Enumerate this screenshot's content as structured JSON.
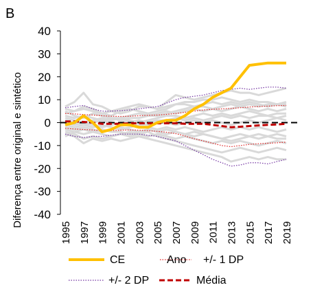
{
  "panel_label": "B",
  "chart_data": {
    "type": "line",
    "title": "",
    "xlabel": "",
    "ylabel": "Diferença entre original e sintético",
    "ylim": [
      -40,
      40
    ],
    "yticks": [
      -40,
      -30,
      -20,
      -10,
      0,
      10,
      20,
      30,
      40
    ],
    "x": [
      1995,
      1996,
      1997,
      1998,
      1999,
      2000,
      2001,
      2002,
      2003,
      2004,
      2005,
      2006,
      2007,
      2008,
      2009,
      2010,
      2011,
      2012,
      2013,
      2014,
      2015,
      2016,
      2017,
      2018,
      2019
    ],
    "xtick_labels": [
      "1995",
      "1997",
      "1999",
      "2001",
      "2003",
      "2005",
      "2007",
      "2009",
      "2011",
      "2013",
      "2015",
      "2017",
      "2019"
    ],
    "xtick_values": [
      1995,
      1997,
      1999,
      2001,
      2003,
      2005,
      2007,
      2009,
      2011,
      2013,
      2015,
      2017,
      2019
    ],
    "grid": false,
    "legend_position": "bottom",
    "legend": [
      "CE",
      "Ano",
      "+/- 1 DP",
      "+/- 2 DP",
      "Média"
    ],
    "colors": {
      "ce": "#FFC000",
      "placebo": "#D9D9D9",
      "sd1": "#E02020",
      "sd2": "#7030A0",
      "mean": "#C00000",
      "zero": "#000000"
    },
    "placebo_series": [
      [
        7,
        9,
        13,
        8,
        7,
        5,
        4,
        5,
        7,
        7,
        6,
        9,
        12,
        11,
        10,
        11,
        12,
        13,
        14,
        13,
        13,
        12,
        13,
        14,
        15
      ],
      [
        6,
        5,
        7,
        6,
        4,
        3,
        5,
        6,
        5,
        4,
        5,
        6,
        8,
        9,
        9,
        10,
        10,
        11,
        10,
        9,
        10,
        9,
        9,
        8,
        9
      ],
      [
        5,
        3,
        2,
        4,
        3,
        2,
        2,
        3,
        4,
        3,
        3,
        4,
        5,
        6,
        7,
        7,
        6,
        7,
        8,
        7,
        8,
        7,
        8,
        8,
        8
      ],
      [
        3,
        2,
        3,
        2,
        1,
        2,
        1,
        2,
        2,
        3,
        4,
        5,
        4,
        5,
        6,
        5,
        6,
        5,
        6,
        7,
        6,
        5,
        6,
        5,
        6
      ],
      [
        2,
        1,
        0,
        1,
        2,
        1,
        2,
        1,
        0,
        1,
        2,
        3,
        3,
        2,
        3,
        4,
        3,
        4,
        3,
        4,
        5,
        4,
        3,
        4,
        4
      ],
      [
        1,
        0,
        -1,
        0,
        1,
        0,
        -1,
        0,
        1,
        0,
        1,
        1,
        2,
        1,
        2,
        1,
        2,
        3,
        2,
        3,
        2,
        3,
        3,
        2,
        3
      ],
      [
        0,
        -1,
        0,
        -1,
        -2,
        -1,
        0,
        1,
        0,
        -1,
        0,
        0,
        -1,
        0,
        1,
        0,
        1,
        0,
        -1,
        0,
        1,
        0,
        1,
        2,
        1
      ],
      [
        -1,
        -2,
        -1,
        -2,
        -1,
        -2,
        -3,
        -2,
        -1,
        -2,
        -3,
        -2,
        -3,
        -2,
        -3,
        -4,
        -3,
        -2,
        -3,
        -2,
        -3,
        -2,
        -3,
        -4,
        -3
      ],
      [
        -2,
        -3,
        -2,
        -3,
        -4,
        -3,
        -2,
        -3,
        -4,
        -3,
        -4,
        -5,
        -4,
        -5,
        -6,
        -5,
        -6,
        -7,
        -6,
        -5,
        -6,
        -7,
        -6,
        -5,
        -6
      ],
      [
        -3,
        -4,
        -5,
        -4,
        -5,
        -6,
        -5,
        -4,
        -5,
        -6,
        -5,
        -6,
        -7,
        -6,
        -7,
        -8,
        -9,
        -8,
        -9,
        -8,
        -9,
        -10,
        -9,
        -8,
        -9
      ],
      [
        -4,
        -5,
        -7,
        -6,
        -7,
        -6,
        -5,
        -6,
        -5,
        -4,
        -6,
        -7,
        -8,
        -9,
        -10,
        -11,
        -12,
        -13,
        -12,
        -11,
        -12,
        -13,
        -12,
        -11,
        -12
      ],
      [
        -5,
        -6,
        -9,
        -7,
        -8,
        -7,
        -8,
        -7,
        -6,
        -7,
        -8,
        -9,
        -10,
        -11,
        -12,
        -13,
        -14,
        -15,
        -17,
        -16,
        -15,
        -16,
        -15,
        -16,
        -16
      ],
      [
        -6,
        -4,
        -3,
        -4,
        -3,
        -4,
        -4,
        -5,
        -4,
        -3,
        -4,
        -3,
        -4,
        -5,
        -4,
        -5,
        -6,
        -7,
        -8,
        -7,
        -6,
        -5,
        -6,
        -7,
        -7
      ],
      [
        4,
        5,
        6,
        5,
        4,
        5,
        6,
        7,
        8,
        7,
        6,
        7,
        8,
        8,
        7,
        8,
        9,
        8,
        9,
        8,
        9,
        8,
        7,
        8,
        7
      ]
    ],
    "series": [
      {
        "name": "CE",
        "role": "ce",
        "values": [
          -1,
          0,
          3,
          0,
          -4,
          -3,
          -1,
          -1,
          -2,
          -2,
          0,
          1,
          1,
          3,
          6,
          8,
          11,
          13,
          15,
          20,
          25,
          25.5,
          26,
          26,
          26
        ]
      },
      {
        "name": "Média",
        "role": "mean",
        "values": [
          0.5,
          0.5,
          0.3,
          0,
          -0.5,
          -0.5,
          -0.5,
          -0.3,
          -0.3,
          -0.3,
          -0.3,
          -0.3,
          -0.3,
          -0.5,
          -0.5,
          -0.5,
          -1,
          -1.5,
          -2,
          -1.8,
          -1.5,
          -1.2,
          -1,
          -0.8,
          -0.5
        ]
      },
      {
        "name": "+/- 1 DP",
        "role": "sd1_upper",
        "values": [
          4,
          3.8,
          3.5,
          3.3,
          3,
          2.8,
          2.7,
          2.8,
          3,
          3.2,
          3.3,
          3.6,
          4,
          4.5,
          5,
          5.5,
          5.8,
          6,
          6.2,
          6.5,
          6.8,
          7,
          7.2,
          7.4,
          7.5
        ]
      },
      {
        "name": "+/- 1 DP",
        "role": "sd1_lower",
        "values": [
          -2.5,
          -2.8,
          -3,
          -3.2,
          -3.5,
          -3.5,
          -3.3,
          -3.2,
          -3.3,
          -3.5,
          -3.8,
          -4.2,
          -4.8,
          -5.8,
          -7,
          -8,
          -9,
          -10,
          -10.5,
          -10,
          -9.5,
          -9.2,
          -9,
          -8.8,
          -8.5
        ]
      },
      {
        "name": "+/- 2 DP",
        "role": "sd2_upper",
        "values": [
          6.5,
          7,
          7.5,
          6,
          5,
          5,
          5.2,
          5.5,
          6,
          6.5,
          7,
          8.5,
          10,
          11,
          11.5,
          12,
          13,
          14,
          14.5,
          15,
          14.5,
          15,
          15.5,
          15.5,
          15
        ]
      },
      {
        "name": "+/- 2 DP",
        "role": "sd2_lower",
        "values": [
          -5,
          -6,
          -6.5,
          -6,
          -6,
          -5.5,
          -5,
          -5,
          -5,
          -5.5,
          -6,
          -7,
          -8,
          -10,
          -12,
          -14,
          -16,
          -17.5,
          -19,
          -18.5,
          -17.5,
          -17.5,
          -18,
          -17,
          -16
        ]
      }
    ]
  }
}
